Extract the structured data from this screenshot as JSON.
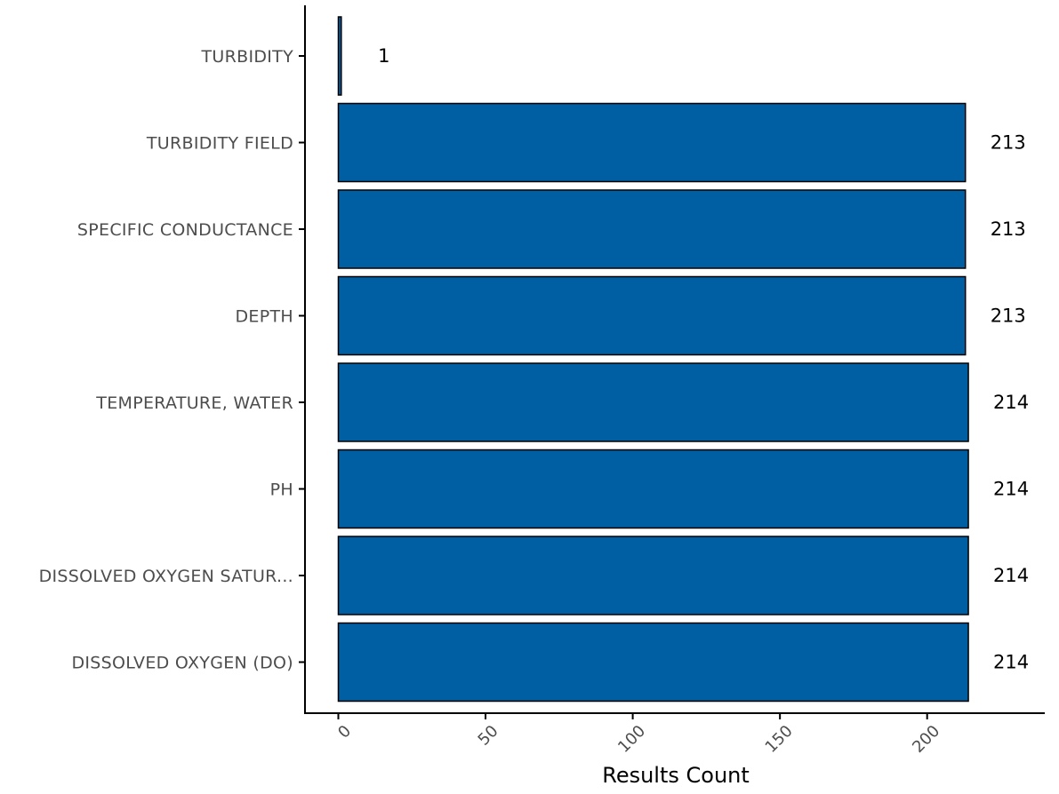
{
  "chart_data": {
    "type": "bar",
    "orientation": "horizontal",
    "categories": [
      "TURBIDITY",
      "TURBIDITY FIELD",
      "SPECIFIC CONDUCTANCE",
      "DEPTH",
      "TEMPERATURE, WATER",
      "PH",
      "DISSOLVED OXYGEN SATUR...",
      "DISSOLVED OXYGEN (DO)"
    ],
    "values": [
      1,
      213,
      213,
      213,
      214,
      214,
      214,
      214
    ],
    "data_labels": [
      "1",
      "213",
      "213",
      "213",
      "214",
      "214",
      "214",
      "214"
    ],
    "xlabel": "Results Count",
    "ylabel": "",
    "title": "",
    "xlim": [
      -11.5,
      240
    ],
    "xticks": [
      0,
      50,
      100,
      150,
      200
    ],
    "xtick_labels": [
      "0",
      "50",
      "100",
      "150",
      "200"
    ],
    "grid": false,
    "legend": "none",
    "bar_color": "#005ea2",
    "bar_edge_color": "#000000"
  }
}
